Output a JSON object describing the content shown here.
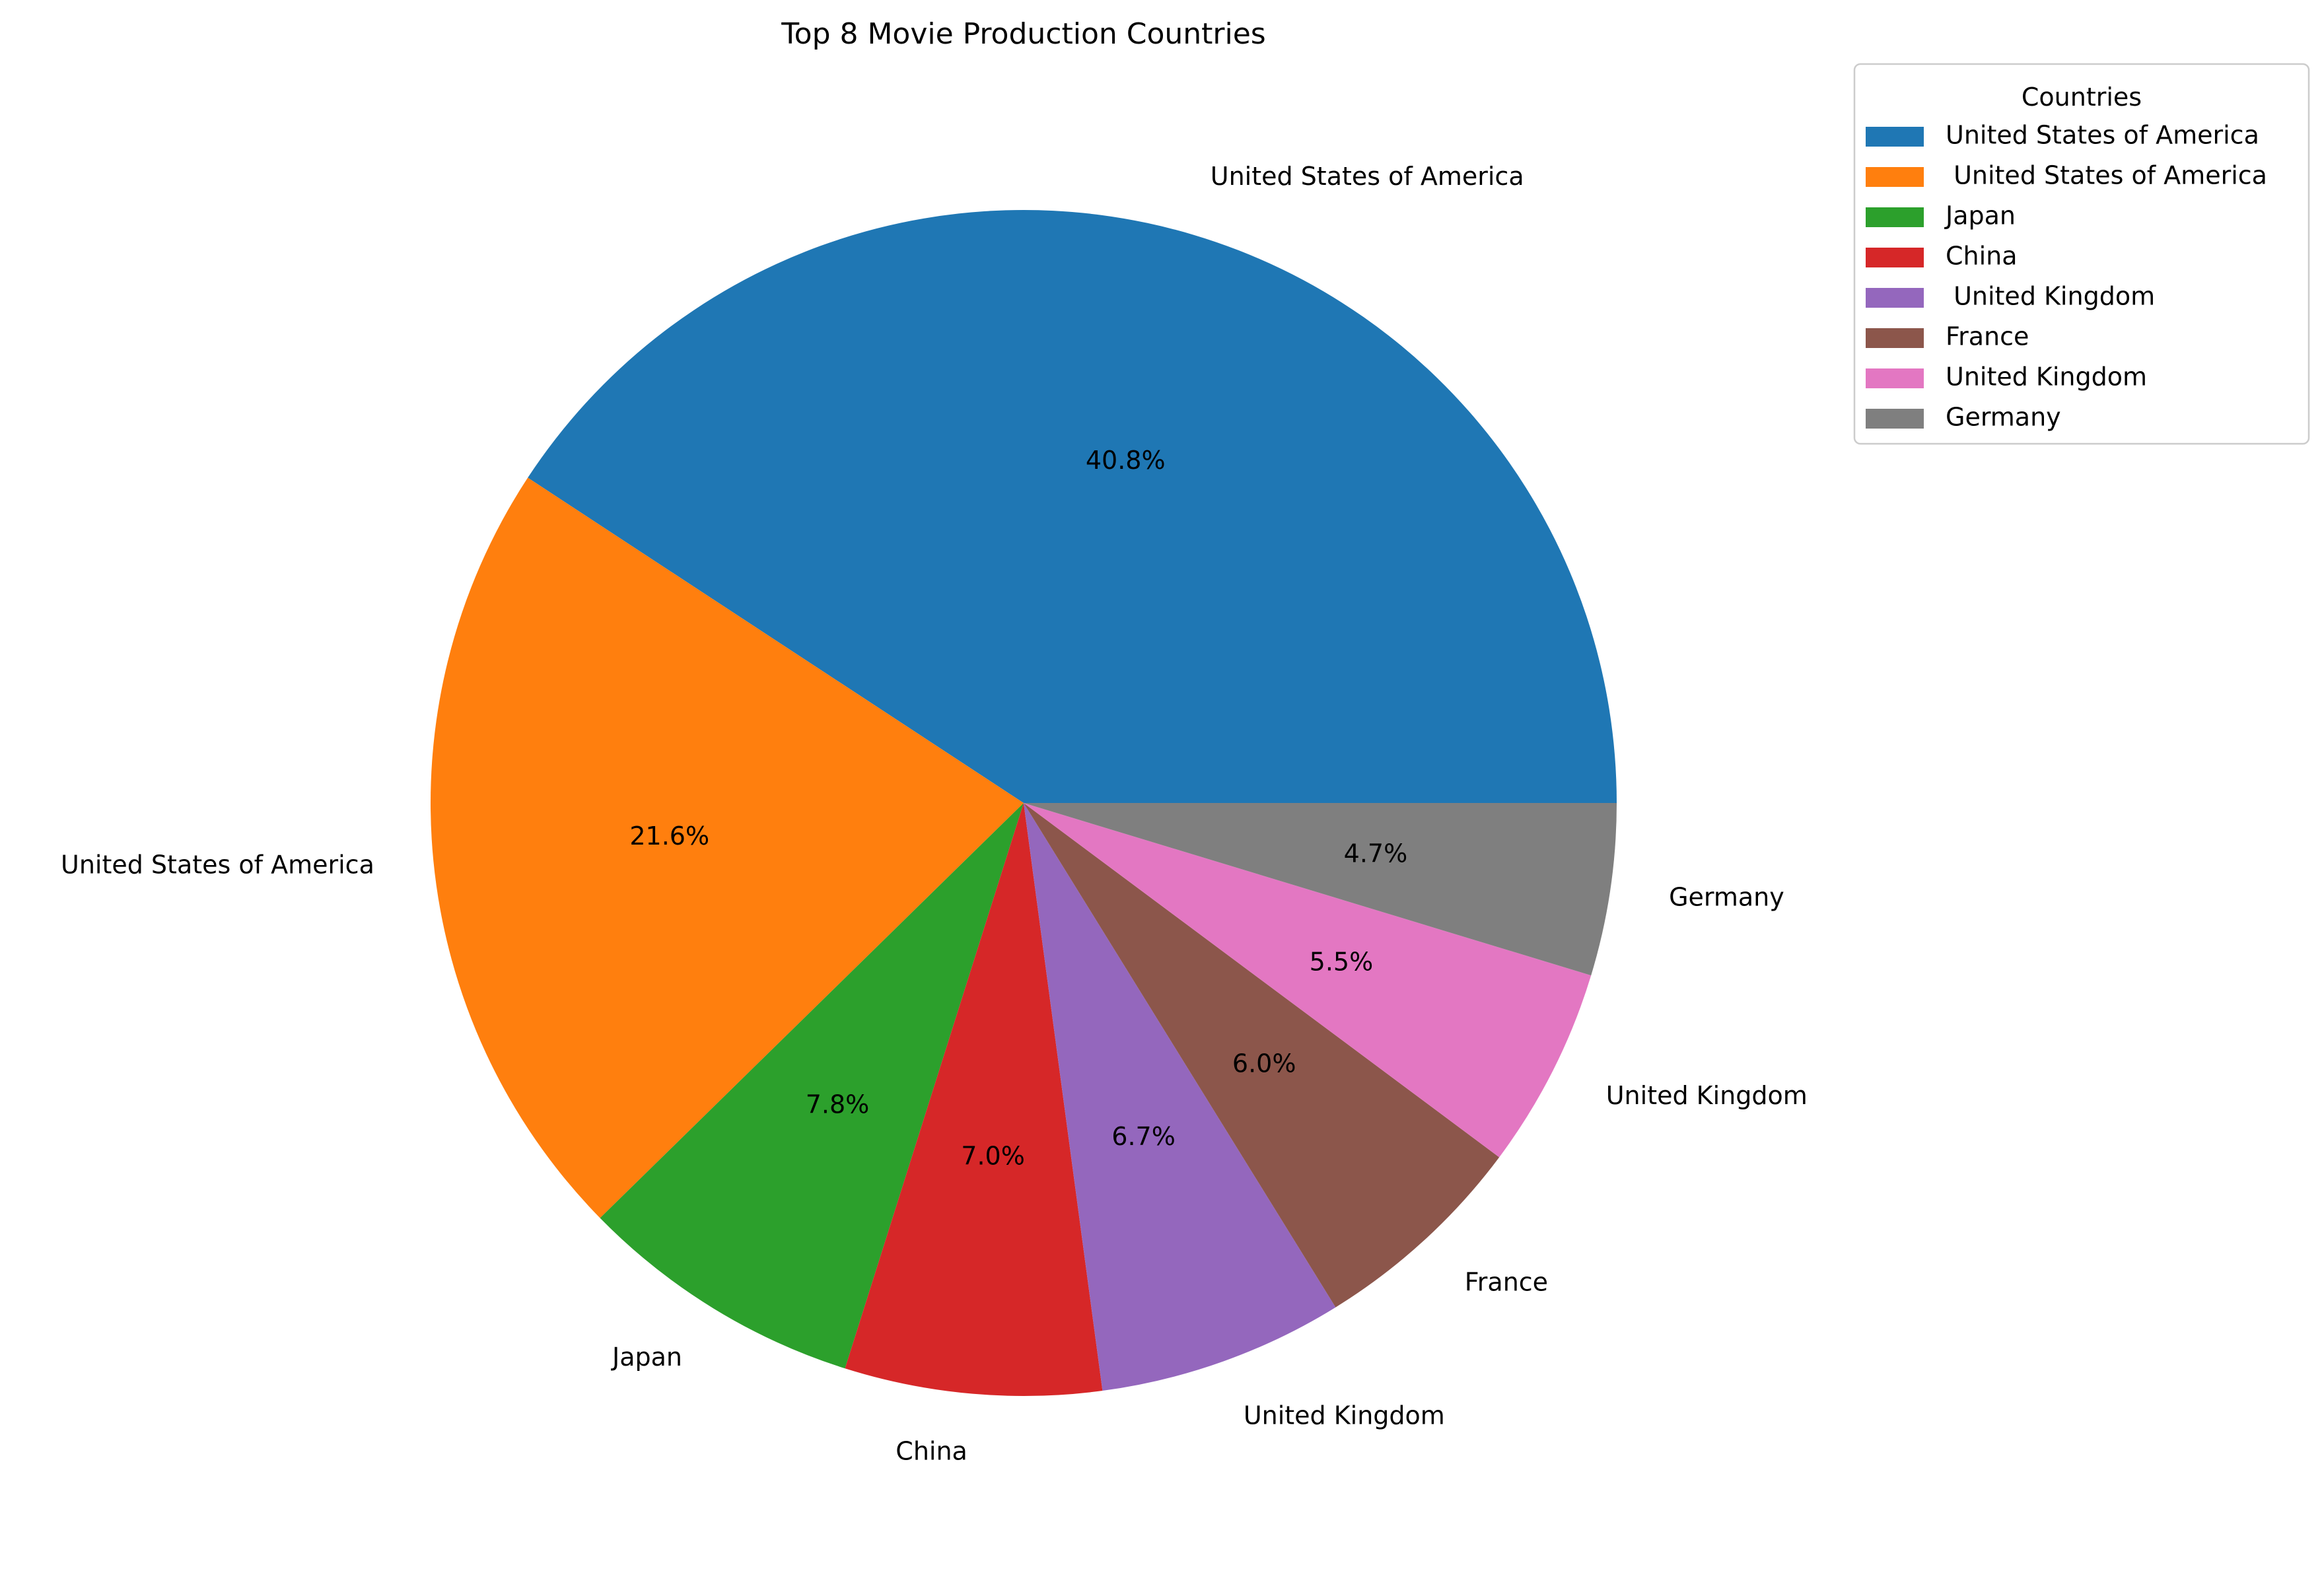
{
  "chart_data": {
    "type": "pie",
    "title": "Top 8 Movie Production Countries",
    "start_angle_deg": 0,
    "direction": "counterclockwise-from-east",
    "slices": [
      {
        "label": "United States of America",
        "legend_label": "United States of America",
        "value": 40.8,
        "pct_label": "40.8%",
        "color": "#1f77b4"
      },
      {
        "label": "United States of America",
        "legend_label": " United States of America",
        "value": 21.6,
        "pct_label": "21.6%",
        "color": "#ff7f0e"
      },
      {
        "label": "Japan",
        "legend_label": "Japan",
        "value": 7.8,
        "pct_label": "7.8%",
        "color": "#2ca02c"
      },
      {
        "label": "China",
        "legend_label": "China",
        "value": 7.0,
        "pct_label": "7.0%",
        "color": "#d62728"
      },
      {
        "label": "United Kingdom",
        "legend_label": " United Kingdom",
        "value": 6.7,
        "pct_label": "6.7%",
        "color": "#9467bd"
      },
      {
        "label": "France",
        "legend_label": "France",
        "value": 6.0,
        "pct_label": "6.0%",
        "color": "#8c564b"
      },
      {
        "label": "United Kingdom",
        "legend_label": "United Kingdom",
        "value": 5.5,
        "pct_label": "5.5%",
        "color": "#e377c2"
      },
      {
        "label": "Germany",
        "legend_label": "Germany",
        "value": 4.7,
        "pct_label": "4.7%",
        "color": "#7f7f7f"
      }
    ],
    "legend": {
      "title": "Countries",
      "placement": "upper-right-outside"
    }
  }
}
